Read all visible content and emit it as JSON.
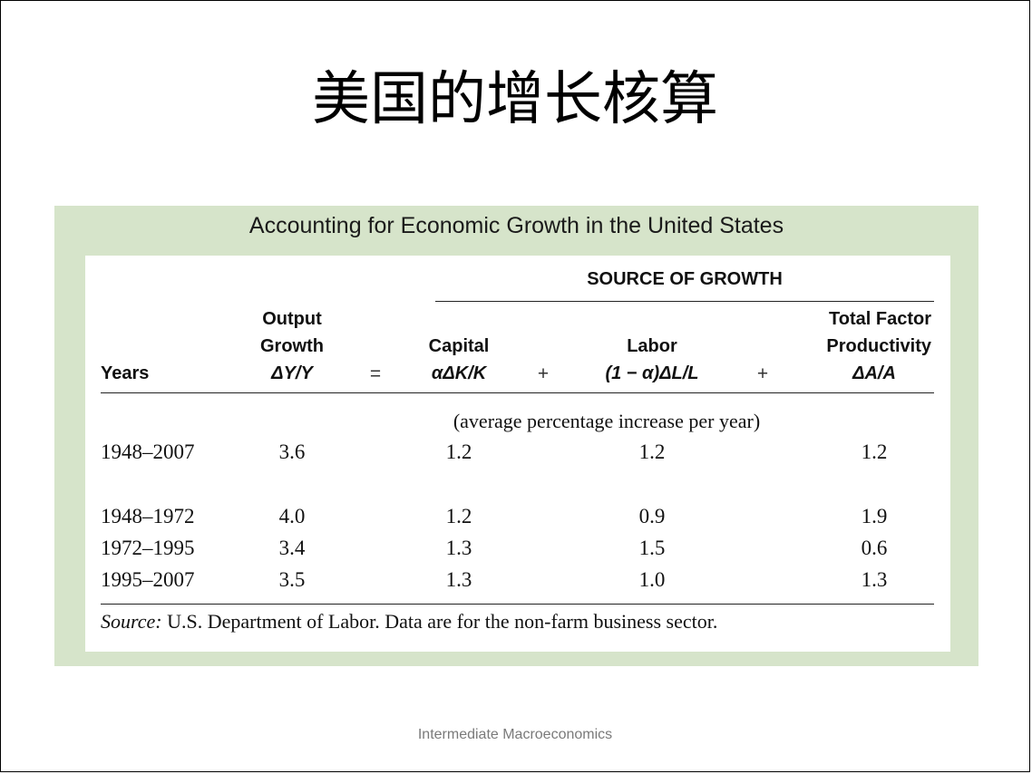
{
  "slide_title": "美国的增长核算",
  "table": {
    "title": "Accounting for Economic Growth in the United States",
    "source_header": "SOURCE OF GROWTH",
    "headers": {
      "years": "Years",
      "output_l1": "Output",
      "output_l2": "Growth",
      "output_sym": "ΔY/Y",
      "equals": "=",
      "capital": "Capital",
      "capital_sym": "αΔK/K",
      "plus1": "+",
      "labor": "Labor",
      "labor_sym": "(1 − α)ΔL/L",
      "plus2": "+",
      "tfp_l1": "Total Factor",
      "tfp_l2": "Productivity",
      "tfp_sym": "ΔA/A"
    },
    "unit_note": "(average percentage increase per year)",
    "rows": [
      {
        "years": "1948–2007",
        "output": "3.6",
        "capital": "1.2",
        "labor": "1.2",
        "tfp": "1.2"
      },
      {
        "years": "1948–1972",
        "output": "4.0",
        "capital": "1.2",
        "labor": "0.9",
        "tfp": "1.9"
      },
      {
        "years": "1972–1995",
        "output": "3.4",
        "capital": "1.3",
        "labor": "1.5",
        "tfp": "0.6"
      },
      {
        "years": "1995–2007",
        "output": "3.5",
        "capital": "1.3",
        "labor": "1.0",
        "tfp": "1.3"
      }
    ],
    "source_label": "Source:",
    "source_text": " U.S. Department of Labor. Data are for the non-farm business sector."
  },
  "footer": "Intermediate Macroeconomics",
  "colors": {
    "panel_background": "#d6e4ca",
    "footer_text": "#7a7a7a"
  }
}
